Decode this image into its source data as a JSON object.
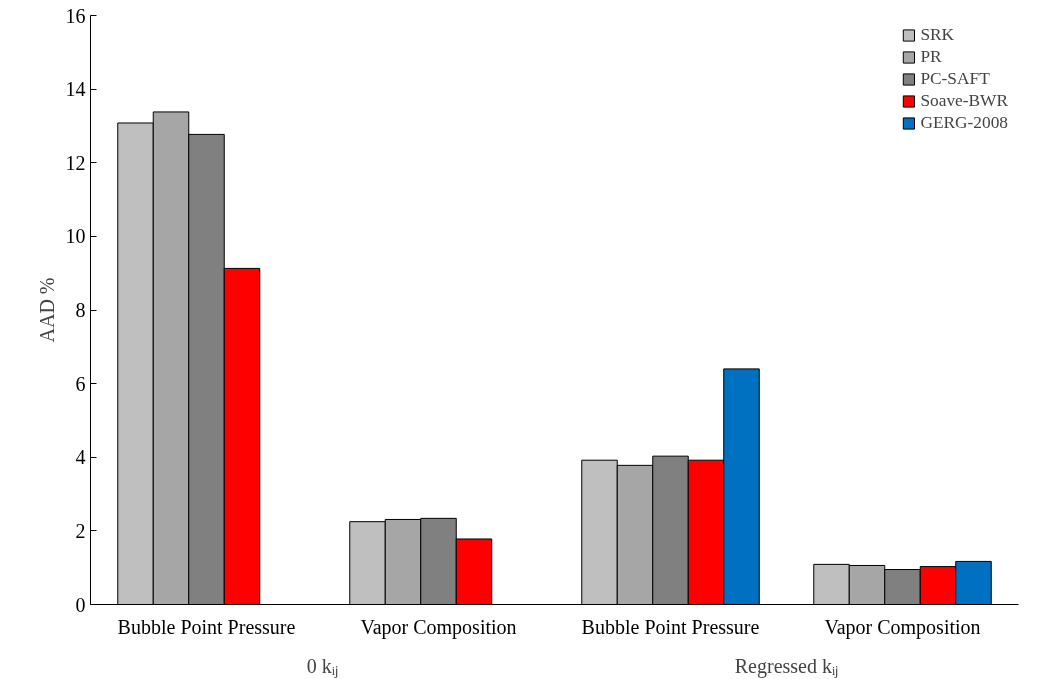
{
  "chart_data": {
    "type": "bar",
    "categories": [
      "Bubble Point Pressure",
      "Vapor Composition",
      "Bubble Point Pressure",
      "Vapor Composition"
    ],
    "ylabel": "AAD %",
    "annotations": [
      "0 kᵢⱼ",
      "Regressed kᵢⱼ"
    ],
    "series": [
      {
        "name": "SRK",
        "color": "#bfbfbf",
        "values": [
          13.08,
          2.25,
          3.92,
          1.09
        ]
      },
      {
        "name": "PR",
        "color": "#a6a6a6",
        "values": [
          13.38,
          2.31,
          3.78,
          1.06
        ]
      },
      {
        "name": "PC-SAFT",
        "color": "#808080",
        "values": [
          12.77,
          2.34,
          4.03,
          0.95
        ]
      },
      {
        "name": "Soave-BWR",
        "color": "#ff0000",
        "values": [
          9.13,
          1.78,
          3.92,
          1.03
        ]
      },
      {
        "name": "GERG-2008",
        "color": "#0070c0",
        "values": [
          null,
          null,
          6.4,
          1.17
        ]
      }
    ],
    "ylim": [
      0,
      16
    ],
    "yticks": [
      0,
      2,
      4,
      6,
      8,
      10,
      12,
      14,
      16
    ],
    "grid": false,
    "legend": "top right"
  }
}
